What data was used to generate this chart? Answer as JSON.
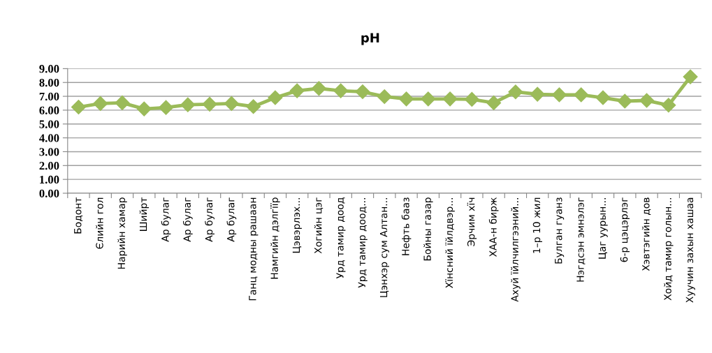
{
  "chart_data": {
    "type": "line",
    "title": "pH",
    "categories": [
      "Бодонт",
      "Єлийн гол",
      "Нарийн хамар",
      "Шийрт",
      "Ар булаг",
      "Ар булаг",
      "Ар булаг",
      "Ар булаг",
      "Ганц модны рашаан",
      "Намгийн дэлгїїр",
      "Цэвэрлэх...",
      "Хогийн цэг",
      "Урд тамир доод",
      "Урд тамир доод...",
      "Цэнхэр сум Алтан...",
      "Нефть бааз",
      "Бойны газар",
      "Хїнсний їйлдвэр...",
      "Эрчим хїч",
      "ХАА-н бирж",
      "Ахуй їйлчилгээний...",
      "1–р 10 жил",
      "Булган гуанз",
      "Нэгдсэн эмнэлэг",
      "Цаг уурын...",
      "6-р цэцэрлэг",
      "Хэвтэгийн дов",
      "Хойд тамир голын...",
      "Хуучин захын хашаа"
    ],
    "series": [
      {
        "color": "#9bbb59",
        "values": [
          6.22,
          6.48,
          6.53,
          6.09,
          6.19,
          6.39,
          6.43,
          6.48,
          6.26,
          6.9,
          7.4,
          7.57,
          7.4,
          7.33,
          6.98,
          6.81,
          6.81,
          6.81,
          6.78,
          6.53,
          7.32,
          7.15,
          7.11,
          7.11,
          6.9,
          6.65,
          6.7,
          6.36,
          8.41
        ]
      }
    ],
    "ylim": [
      0,
      9
    ],
    "yticks": [
      {
        "value": 0,
        "label": "0.00"
      },
      {
        "value": 1,
        "label": "1.00"
      },
      {
        "value": 2,
        "label": "2.00"
      },
      {
        "value": 3,
        "label": "3.00"
      },
      {
        "value": 4,
        "label": "4.00"
      },
      {
        "value": 5,
        "label": "5.00"
      },
      {
        "value": 6,
        "label": "6.00"
      },
      {
        "value": 7,
        "label": "7.00"
      },
      {
        "value": 8,
        "label": "8.00"
      },
      {
        "value": 9,
        "label": "9.00"
      }
    ],
    "grid": "y",
    "marker": "diamond",
    "line_style": "solid"
  }
}
